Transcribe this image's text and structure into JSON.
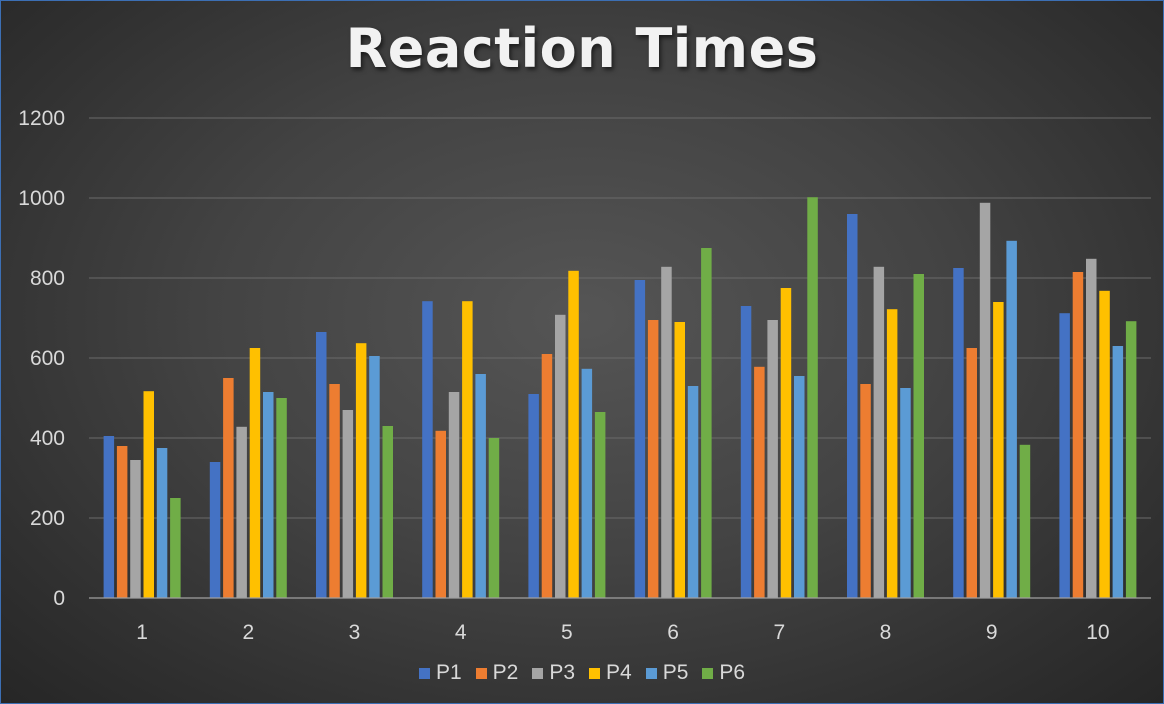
{
  "chart_data": {
    "type": "bar",
    "title": "Reaction Times",
    "xlabel": "",
    "ylabel": "",
    "categories": [
      "1",
      "2",
      "3",
      "4",
      "5",
      "6",
      "7",
      "8",
      "9",
      "10"
    ],
    "ylim": [
      0,
      1200
    ],
    "yticks": [
      0,
      200,
      400,
      600,
      800,
      1000,
      1200
    ],
    "grid": true,
    "legend_position": "bottom",
    "series": [
      {
        "name": "P1",
        "color": "#4472c4",
        "values": [
          405,
          340,
          665,
          742,
          510,
          795,
          730,
          960,
          825,
          712
        ]
      },
      {
        "name": "P2",
        "color": "#ed7d31",
        "values": [
          380,
          550,
          535,
          418,
          610,
          695,
          578,
          535,
          625,
          815
        ]
      },
      {
        "name": "P3",
        "color": "#a5a5a5",
        "values": [
          345,
          428,
          470,
          515,
          708,
          828,
          695,
          828,
          988,
          848
        ]
      },
      {
        "name": "P4",
        "color": "#ffc000",
        "values": [
          517,
          625,
          637,
          742,
          818,
          690,
          775,
          722,
          740,
          768
        ]
      },
      {
        "name": "P5",
        "color": "#5b9bd5",
        "values": [
          375,
          515,
          605,
          560,
          573,
          530,
          555,
          525,
          893,
          630
        ]
      },
      {
        "name": "P6",
        "color": "#70ad47",
        "values": [
          250,
          500,
          430,
          400,
          465,
          875,
          1002,
          810,
          383,
          692
        ]
      }
    ]
  }
}
